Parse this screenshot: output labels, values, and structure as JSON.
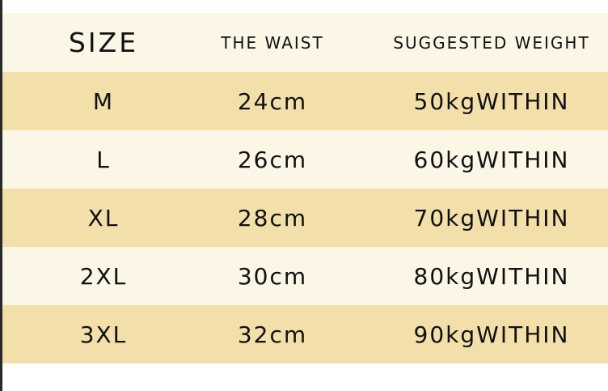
{
  "headers": [
    "SIZE",
    "THE WAIST",
    "SUGGESTED WEIGHT"
  ],
  "rows": [
    {
      "size": "M",
      "waist": "24cm",
      "weight": "50kgWITHIN"
    },
    {
      "size": "L",
      "waist": "26cm",
      "weight": "60kgWITHIN"
    },
    {
      "size": "XL",
      "waist": "28cm",
      "weight": "70kgWITHIN"
    },
    {
      "size": "2XL",
      "waist": "30cm",
      "weight": "80kgWITHIN"
    },
    {
      "size": "3XL",
      "waist": "32cm",
      "weight": "90kgWITHIN"
    }
  ],
  "colors": {
    "header_bg": "#fcf6e7",
    "row_tan": "#f2dfa9",
    "row_cream": "#fcf6e6"
  }
}
